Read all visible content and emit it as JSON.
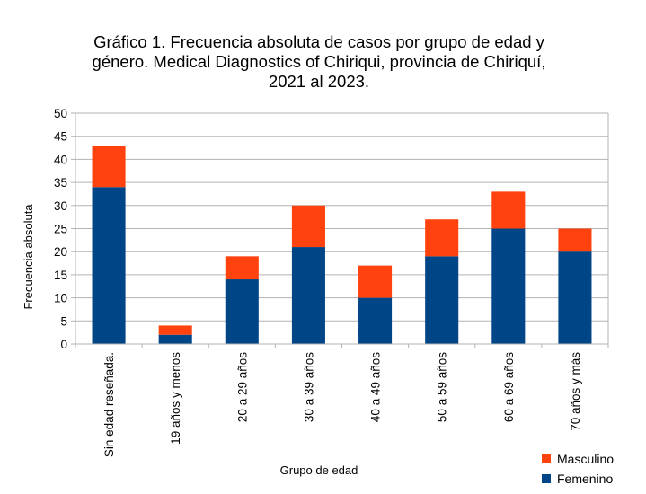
{
  "chart_data": {
    "type": "bar",
    "stacked": true,
    "title_lines": [
      "Gráfico 1. Frecuencia absoluta de casos por grupo de edad y",
      "género. Medical Diagnostics of Chiriqui, provincia de Chiriquí,",
      "2021 al 2023."
    ],
    "xlabel": "Grupo de edad",
    "ylabel": "Frecuencia absoluta",
    "categories": [
      "Sin edad reseñada.",
      "19 años y menos",
      "20 a 29 años",
      "30 a 39 años",
      "40 a 49 años",
      "50 a 59 años",
      "60 a 69 años",
      "70 años y más"
    ],
    "series": [
      {
        "name": "Femenino",
        "color": "#004586",
        "values": [
          34,
          2,
          14,
          21,
          10,
          19,
          25,
          20
        ]
      },
      {
        "name": "Masculino",
        "color": "#ff420e",
        "values": [
          9,
          2,
          5,
          9,
          7,
          8,
          8,
          5
        ]
      }
    ],
    "ylim": [
      0,
      50
    ],
    "yticks": [
      0,
      5,
      10,
      15,
      20,
      25,
      30,
      35,
      40,
      45,
      50
    ],
    "grid": true,
    "legend_position": "bottom-right"
  }
}
